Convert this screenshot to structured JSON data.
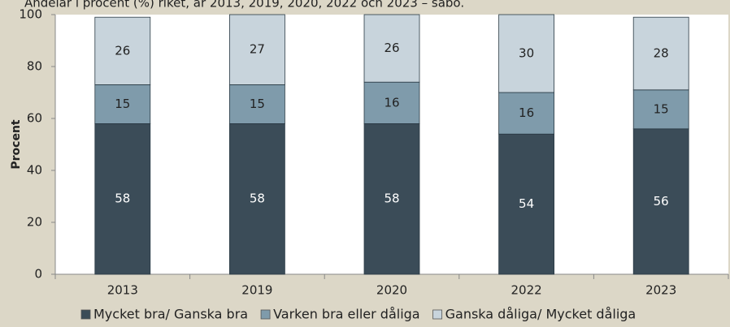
{
  "chart_data": {
    "type": "stacked_bar",
    "title": "Andelar i procent (%) riket, år 2013, 2019, 2020, 2022 och 2023 – sabo.",
    "y_label": "Procent",
    "categories": [
      "2013",
      "2019",
      "2020",
      "2022",
      "2023"
    ],
    "series": [
      {
        "name": "Mycket bra/ Ganska bra",
        "color": "#3b4c58",
        "label_color": "#ffffff",
        "values": [
          58,
          58,
          58,
          54,
          56
        ]
      },
      {
        "name": "Varken bra eller dåliga",
        "color": "#7f9bab",
        "label_color": "#222222",
        "values": [
          15,
          15,
          16,
          16,
          15
        ]
      },
      {
        "name": "Ganska dåliga/ Mycket dåliga",
        "color": "#c8d4dc",
        "label_color": "#222222",
        "values": [
          26,
          27,
          26,
          30,
          28
        ]
      }
    ],
    "ylim": [
      0,
      100
    ],
    "yticks": [
      0,
      20,
      40,
      60,
      80,
      100
    ],
    "legend": "bottom"
  }
}
